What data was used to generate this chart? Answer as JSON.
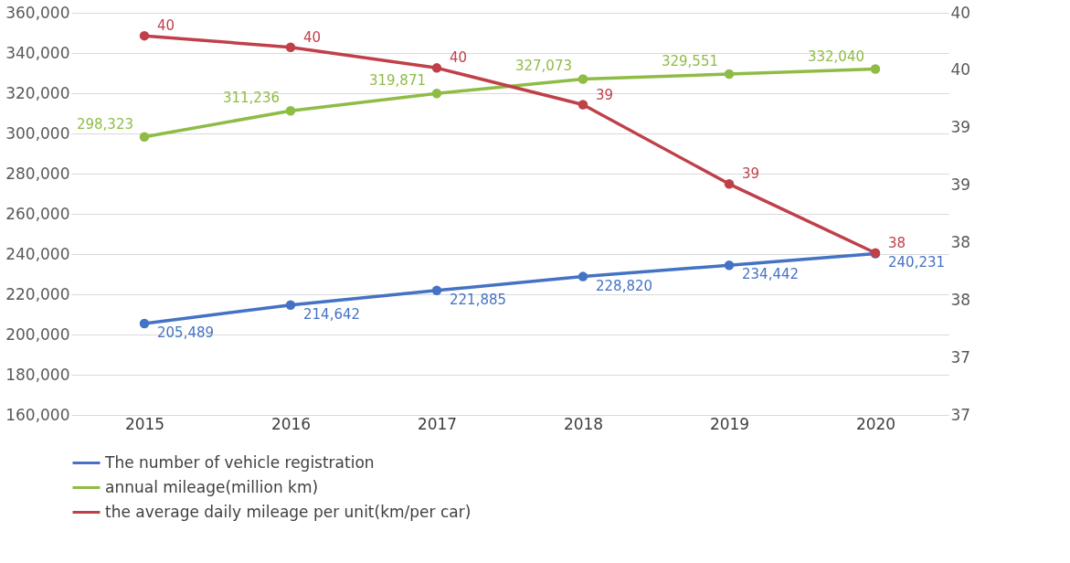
{
  "chart_data": {
    "type": "line",
    "categories": [
      "2015",
      "2016",
      "2017",
      "2018",
      "2019",
      "2020"
    ],
    "series": [
      {
        "name": "The number of vehicle registration",
        "color": "#4472c4",
        "values": [
          205489,
          214642,
          221885,
          228820,
          234442,
          240231
        ],
        "value_labels": [
          "205,489",
          "214,642",
          "221,885",
          "228,820",
          "234,442",
          "240,231"
        ]
      },
      {
        "name": "annual mileage(million km)",
        "color": "#8fbc45",
        "values": [
          298323,
          311236,
          319871,
          327073,
          329551,
          332040
        ],
        "value_labels": [
          "298,323",
          "311,236",
          "319,871",
          "327,073",
          "329,551",
          "332,040"
        ]
      },
      {
        "name": "the average daily mileage per unit(km/per car)",
        "color": "#c0404a",
        "axis": "y2",
        "values": [
          39.8,
          39.7,
          39.52,
          39.2,
          38.51,
          37.91
        ],
        "value_labels": [
          "40",
          "40",
          "40",
          "39",
          "39",
          "38"
        ]
      }
    ],
    "ylim": [
      160000,
      360000
    ],
    "yticks": [
      {
        "value": 160000,
        "label": "160,000"
      },
      {
        "value": 180000,
        "label": "180,000"
      },
      {
        "value": 200000,
        "label": "200,000"
      },
      {
        "value": 220000,
        "label": "220,000"
      },
      {
        "value": 240000,
        "label": "240,000"
      },
      {
        "value": 260000,
        "label": "260,000"
      },
      {
        "value": 280000,
        "label": "280,000"
      },
      {
        "value": 300000,
        "label": "300,000"
      },
      {
        "value": 320000,
        "label": "320,000"
      },
      {
        "value": 340000,
        "label": "340,000"
      },
      {
        "value": 360000,
        "label": "360,000"
      }
    ],
    "y2lim": [
      36.5,
      40
    ],
    "y2ticks": [
      {
        "value": 36.5,
        "label": "37"
      },
      {
        "value": 37,
        "label": "37"
      },
      {
        "value": 37.5,
        "label": "38"
      },
      {
        "value": 38,
        "label": "38"
      },
      {
        "value": 38.5,
        "label": "39"
      },
      {
        "value": 39,
        "label": "39"
      },
      {
        "value": 39.5,
        "label": "40"
      },
      {
        "value": 40,
        "label": "40"
      }
    ],
    "grid": "y",
    "legend": "bottom",
    "marker": "circle",
    "line_style": "solid"
  }
}
